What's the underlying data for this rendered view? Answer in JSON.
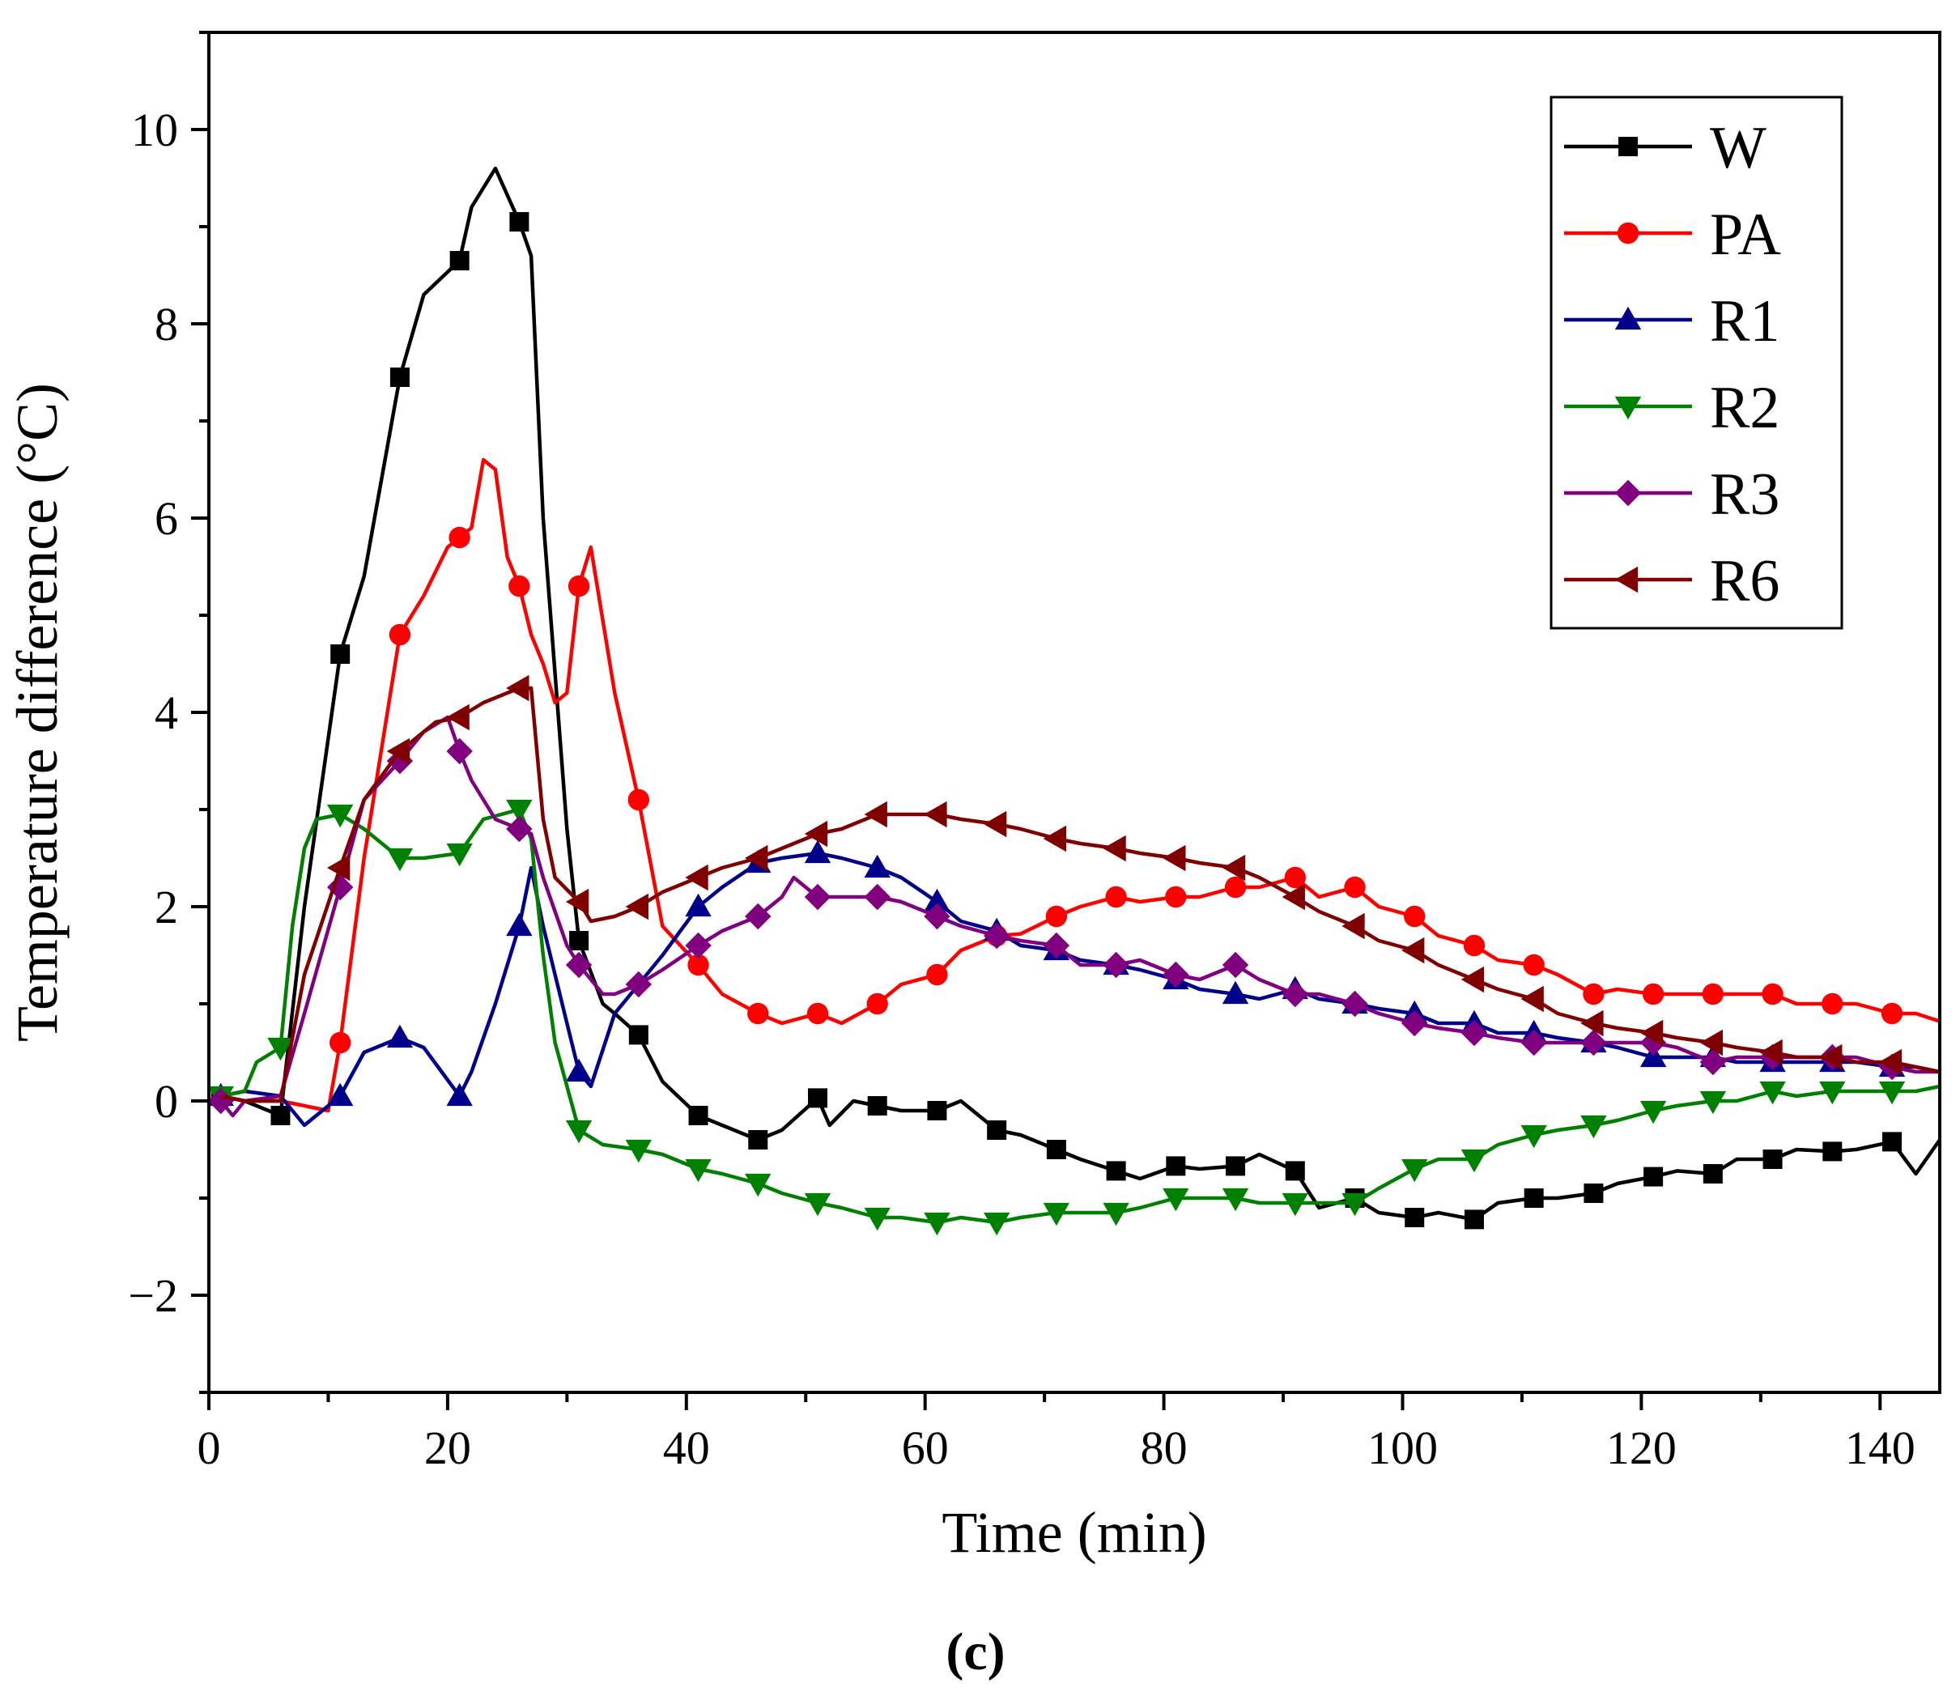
{
  "chart_data": {
    "type": "line",
    "caption": "(c)",
    "xlabel": "Time (min)",
    "ylabel": "Temperature difference (°C)",
    "xlim": [
      0,
      145
    ],
    "ylim": [
      -3,
      11
    ],
    "xticks": [
      0,
      20,
      40,
      60,
      80,
      100,
      120,
      140
    ],
    "xtick_labels": [
      "0",
      "20",
      "40",
      "60",
      "80",
      "100",
      "120",
      "140"
    ],
    "yticks": [
      -2,
      0,
      2,
      4,
      6,
      8,
      10
    ],
    "ytick_labels": [
      "−2",
      "0",
      "2",
      "4",
      "6",
      "8",
      "10"
    ],
    "legend_position": "top-right",
    "series": [
      {
        "name": "W",
        "color": "#000000",
        "marker": "square",
        "x": [
          1,
          3,
          6,
          8,
          11,
          13,
          16,
          18,
          21,
          22,
          24,
          26,
          27,
          28,
          30,
          31,
          33,
          34,
          36,
          38,
          41,
          43,
          46,
          48,
          51,
          52,
          54,
          56,
          58,
          61,
          63,
          66,
          68,
          71,
          73,
          76,
          78,
          81,
          83,
          86,
          88,
          91,
          93,
          96,
          98,
          101,
          103,
          106,
          108,
          111,
          113,
          116,
          118,
          121,
          123,
          126,
          128,
          131,
          133,
          136,
          138,
          141,
          143,
          145
        ],
        "y": [
          0.05,
          0.0,
          -0.15,
          2.0,
          4.6,
          5.4,
          7.45,
          8.3,
          8.65,
          9.2,
          9.6,
          9.05,
          8.7,
          6.0,
          2.8,
          1.65,
          1.0,
          0.9,
          0.68,
          0.2,
          -0.15,
          -0.25,
          -0.4,
          -0.3,
          0.03,
          -0.25,
          0.0,
          -0.05,
          -0.1,
          -0.1,
          0.0,
          -0.3,
          -0.35,
          -0.5,
          -0.6,
          -0.72,
          -0.8,
          -0.67,
          -0.7,
          -0.67,
          -0.55,
          -0.72,
          -1.1,
          -1.0,
          -1.15,
          -1.2,
          -1.15,
          -1.22,
          -1.05,
          -1.0,
          -1.0,
          -0.95,
          -0.85,
          -0.78,
          -0.72,
          -0.75,
          -0.6,
          -0.6,
          -0.5,
          -0.52,
          -0.5,
          -0.42,
          -0.75,
          -0.4
        ],
        "markers_x": [
          1,
          6,
          11,
          16,
          21,
          26,
          31,
          36,
          41,
          46,
          51,
          56,
          61,
          66,
          71,
          76,
          81,
          86,
          91,
          96,
          101,
          106,
          111,
          116,
          121,
          126,
          131,
          136,
          141
        ]
      },
      {
        "name": "PA",
        "color": "#ff0000",
        "marker": "circle",
        "x": [
          1,
          3,
          6,
          10,
          11,
          13,
          16,
          18,
          20,
          21,
          22,
          23,
          24,
          25,
          26,
          27,
          28,
          29,
          30,
          31,
          32,
          34,
          36,
          38,
          41,
          43,
          46,
          48,
          51,
          53,
          56,
          58,
          61,
          63,
          66,
          68,
          71,
          73,
          76,
          78,
          81,
          83,
          86,
          88,
          91,
          93,
          96,
          98,
          101,
          103,
          106,
          108,
          111,
          113,
          116,
          118,
          121,
          123,
          126,
          128,
          131,
          133,
          136,
          138,
          141,
          143,
          145
        ],
        "y": [
          0.05,
          0.0,
          0.0,
          -0.1,
          0.6,
          2.5,
          4.8,
          5.2,
          5.7,
          5.8,
          5.9,
          6.6,
          6.5,
          5.6,
          5.3,
          4.8,
          4.5,
          4.1,
          4.2,
          5.3,
          5.7,
          4.2,
          3.1,
          1.8,
          1.4,
          1.1,
          0.9,
          0.8,
          0.9,
          0.8,
          1.0,
          1.2,
          1.3,
          1.55,
          1.7,
          1.72,
          1.9,
          2.0,
          2.1,
          2.05,
          2.1,
          2.1,
          2.2,
          2.2,
          2.3,
          2.1,
          2.2,
          2.0,
          1.9,
          1.7,
          1.6,
          1.45,
          1.4,
          1.3,
          1.1,
          1.15,
          1.1,
          1.1,
          1.1,
          1.1,
          1.1,
          1.0,
          1.0,
          1.0,
          0.9,
          0.9,
          0.82
        ],
        "markers_x": [
          11,
          16,
          21,
          26,
          31,
          36,
          41,
          46,
          51,
          56,
          61,
          66,
          71,
          76,
          81,
          86,
          91,
          96,
          101,
          106,
          111,
          116,
          121,
          126,
          131,
          136,
          141
        ]
      },
      {
        "name": "R1",
        "color": "#00008b",
        "marker": "triangle-up",
        "x": [
          1,
          3,
          6,
          8,
          11,
          13,
          16,
          18,
          21,
          22,
          24,
          26,
          27,
          28,
          30,
          31,
          32,
          34,
          36,
          38,
          41,
          43,
          46,
          48,
          51,
          53,
          56,
          58,
          61,
          63,
          66,
          68,
          71,
          73,
          76,
          78,
          81,
          83,
          86,
          88,
          91,
          93,
          96,
          98,
          101,
          103,
          106,
          108,
          111,
          113,
          116,
          118,
          121,
          123,
          126,
          128,
          131,
          133,
          136,
          138,
          141,
          143,
          145
        ],
        "y": [
          0.05,
          0.1,
          0.05,
          -0.25,
          0.05,
          0.5,
          0.65,
          0.55,
          0.05,
          0.3,
          1.0,
          1.8,
          2.4,
          1.8,
          0.8,
          0.3,
          0.15,
          0.9,
          1.2,
          1.5,
          2.0,
          2.2,
          2.45,
          2.5,
          2.55,
          2.5,
          2.4,
          2.3,
          2.05,
          1.85,
          1.75,
          1.6,
          1.55,
          1.45,
          1.4,
          1.35,
          1.25,
          1.15,
          1.1,
          1.05,
          1.15,
          1.05,
          1.0,
          0.95,
          0.9,
          0.8,
          0.8,
          0.7,
          0.7,
          0.65,
          0.6,
          0.55,
          0.45,
          0.45,
          0.45,
          0.4,
          0.4,
          0.4,
          0.4,
          0.4,
          0.35,
          0.35,
          0.3
        ],
        "markers_x": [
          1,
          11,
          16,
          21,
          26,
          31,
          41,
          46,
          51,
          56,
          61,
          66,
          71,
          76,
          81,
          86,
          91,
          96,
          101,
          106,
          111,
          116,
          121,
          126,
          131,
          136,
          141
        ]
      },
      {
        "name": "R2",
        "color": "#008000",
        "marker": "triangle-down",
        "x": [
          1,
          3,
          4,
          6,
          7,
          8,
          9,
          11,
          13,
          16,
          18,
          21,
          23,
          26,
          27,
          28,
          29,
          31,
          33,
          36,
          38,
          41,
          43,
          46,
          48,
          51,
          53,
          56,
          58,
          61,
          63,
          66,
          68,
          71,
          73,
          76,
          78,
          81,
          83,
          86,
          88,
          91,
          93,
          96,
          98,
          101,
          103,
          106,
          108,
          111,
          113,
          116,
          118,
          121,
          123,
          126,
          128,
          131,
          133,
          136,
          138,
          141,
          143,
          145
        ],
        "y": [
          0.05,
          0.1,
          0.4,
          0.55,
          1.8,
          2.6,
          2.9,
          2.95,
          2.8,
          2.5,
          2.5,
          2.55,
          2.9,
          3.0,
          2.7,
          1.5,
          0.6,
          -0.3,
          -0.45,
          -0.5,
          -0.55,
          -0.7,
          -0.75,
          -0.85,
          -0.95,
          -1.05,
          -1.1,
          -1.2,
          -1.2,
          -1.25,
          -1.2,
          -1.25,
          -1.2,
          -1.15,
          -1.15,
          -1.15,
          -1.1,
          -1.0,
          -1.0,
          -1.0,
          -1.05,
          -1.05,
          -1.05,
          -1.05,
          -0.9,
          -0.7,
          -0.6,
          -0.6,
          -0.45,
          -0.35,
          -0.3,
          -0.25,
          -0.2,
          -0.1,
          -0.05,
          0.0,
          0.0,
          0.1,
          0.05,
          0.1,
          0.1,
          0.1,
          0.1,
          0.15
        ],
        "markers_x": [
          1,
          6,
          11,
          16,
          21,
          26,
          31,
          36,
          41,
          46,
          51,
          56,
          61,
          66,
          71,
          76,
          81,
          86,
          91,
          96,
          101,
          106,
          111,
          116,
          121,
          126,
          131,
          136,
          141
        ]
      },
      {
        "name": "R3",
        "color": "#800080",
        "marker": "diamond",
        "x": [
          1,
          2,
          3,
          6,
          8,
          11,
          13,
          16,
          18,
          20,
          21,
          22,
          24,
          26,
          27,
          28,
          30,
          31,
          33,
          34,
          36,
          38,
          41,
          43,
          46,
          48,
          49,
          51,
          53,
          56,
          58,
          61,
          63,
          66,
          68,
          71,
          73,
          76,
          78,
          81,
          83,
          86,
          88,
          91,
          93,
          96,
          98,
          101,
          103,
          106,
          108,
          111,
          113,
          116,
          118,
          121,
          123,
          126,
          128,
          131,
          133,
          136,
          138,
          141,
          143,
          145
        ],
        "y": [
          0.0,
          -0.15,
          0.0,
          0.05,
          0.9,
          2.2,
          3.1,
          3.5,
          3.8,
          3.95,
          3.6,
          3.3,
          2.9,
          2.8,
          2.75,
          2.3,
          1.6,
          1.4,
          1.1,
          1.1,
          1.2,
          1.35,
          1.6,
          1.75,
          1.9,
          2.1,
          2.3,
          2.1,
          2.1,
          2.1,
          2.05,
          1.9,
          1.8,
          1.7,
          1.65,
          1.6,
          1.4,
          1.4,
          1.45,
          1.3,
          1.25,
          1.4,
          1.25,
          1.1,
          1.1,
          1.0,
          0.9,
          0.8,
          0.75,
          0.7,
          0.65,
          0.6,
          0.6,
          0.6,
          0.6,
          0.6,
          0.55,
          0.4,
          0.45,
          0.45,
          0.45,
          0.45,
          0.45,
          0.35,
          0.3,
          0.3
        ],
        "markers_x": [
          1,
          11,
          16,
          21,
          26,
          31,
          36,
          41,
          46,
          51,
          56,
          61,
          66,
          71,
          76,
          81,
          86,
          91,
          96,
          101,
          106,
          111,
          116,
          121,
          126,
          131,
          136,
          141
        ]
      },
      {
        "name": "R6",
        "color": "#800000",
        "marker": "triangle-left",
        "x": [
          1,
          3,
          6,
          8,
          11,
          13,
          16,
          18,
          19,
          21,
          23,
          26,
          27,
          28,
          29,
          31,
          32,
          34,
          36,
          38,
          41,
          43,
          46,
          48,
          51,
          53,
          56,
          58,
          61,
          63,
          66,
          68,
          71,
          73,
          76,
          78,
          81,
          83,
          86,
          88,
          91,
          93,
          96,
          98,
          101,
          103,
          106,
          108,
          111,
          113,
          116,
          118,
          121,
          123,
          126,
          128,
          131,
          133,
          136,
          138,
          141,
          143,
          145
        ],
        "y": [
          0.05,
          0.0,
          0.0,
          1.3,
          2.4,
          3.1,
          3.6,
          3.8,
          3.9,
          3.95,
          4.1,
          4.25,
          4.25,
          2.9,
          2.3,
          2.05,
          1.85,
          1.9,
          2.0,
          2.15,
          2.3,
          2.4,
          2.5,
          2.6,
          2.75,
          2.8,
          2.95,
          2.95,
          2.95,
          2.9,
          2.85,
          2.8,
          2.7,
          2.65,
          2.6,
          2.55,
          2.5,
          2.45,
          2.4,
          2.3,
          2.1,
          1.95,
          1.8,
          1.65,
          1.55,
          1.4,
          1.25,
          1.15,
          1.05,
          0.9,
          0.8,
          0.75,
          0.7,
          0.65,
          0.6,
          0.55,
          0.5,
          0.45,
          0.45,
          0.4,
          0.4,
          0.35,
          0.3
        ],
        "markers_x": [
          11,
          16,
          21,
          26,
          31,
          36,
          41,
          46,
          51,
          56,
          61,
          66,
          71,
          76,
          81,
          86,
          91,
          96,
          101,
          106,
          111,
          116,
          121,
          126,
          131,
          136,
          141
        ]
      }
    ]
  }
}
